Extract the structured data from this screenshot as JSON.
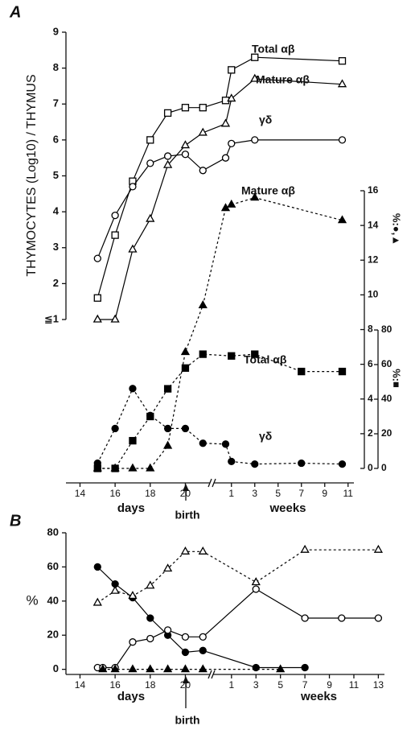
{
  "chart_data": [
    {
      "type": "line",
      "panel": "A",
      "ylabel": "THYMOCYTES (Log10) / THYMUS",
      "xlabel_days": "days",
      "xlabel_weeks": "weeks",
      "annotation": "birth",
      "xlim_days": [
        13.2,
        21.4
      ],
      "xticks_days": [
        14,
        16,
        18,
        20
      ],
      "xlim_weeks": [
        -0.5,
        11.5
      ],
      "xticks_weeks": [
        1,
        3,
        5,
        7,
        9,
        11
      ],
      "ylim": [
        1,
        9
      ],
      "yticks": [
        {
          "value": 1,
          "label": "≦1"
        },
        2,
        3,
        4,
        5,
        6,
        7,
        8,
        9
      ],
      "y2label": "%:●,▲",
      "y2lim": [
        0,
        16
      ],
      "y2ticks": [
        0,
        2,
        4,
        6,
        8,
        10,
        12,
        14,
        16
      ],
      "y3label": "%:■",
      "y3lim": [
        0,
        80
      ],
      "y3ticks": [
        0,
        20,
        40,
        60,
        80
      ],
      "series": [
        {
          "name": "Total αβ",
          "color": "#000000",
          "marker": "square",
          "filled": false,
          "dashed": false,
          "axis": "y",
          "x_days": [
            15,
            16,
            17,
            18,
            19,
            20,
            21
          ],
          "values_days": [
            1.6,
            3.35,
            4.85,
            6.0,
            6.75,
            6.9,
            6.9
          ],
          "x_weeks": [
            0.5,
            1,
            3,
            10.5
          ],
          "values_weeks": [
            7.1,
            7.95,
            8.3,
            8.2
          ]
        },
        {
          "name": "Mature αβ",
          "color": "#000000",
          "marker": "triangle",
          "filled": false,
          "dashed": false,
          "axis": "y",
          "x_days": [
            15,
            16,
            17,
            18,
            19,
            20,
            21
          ],
          "values_days": [
            1,
            1,
            2.95,
            3.8,
            5.3,
            5.85,
            6.2
          ],
          "x_weeks": [
            0.5,
            1,
            3,
            10.5
          ],
          "values_weeks": [
            6.45,
            7.15,
            7.7,
            7.55
          ]
        },
        {
          "name": "γδ",
          "color": "#000000",
          "marker": "circle",
          "filled": false,
          "dashed": false,
          "axis": "y",
          "x_days": [
            15,
            16,
            17,
            18,
            19,
            20,
            21
          ],
          "values_days": [
            2.7,
            3.9,
            4.7,
            5.35,
            5.55,
            5.6,
            5.15
          ],
          "x_weeks": [
            0.5,
            1,
            3,
            10.5
          ],
          "values_weeks": [
            5.5,
            5.9,
            6.0,
            6.0
          ]
        },
        {
          "name": "Mature αβ",
          "color": "#000000",
          "marker": "triangle",
          "filled": true,
          "dashed": true,
          "axis": "y2",
          "x_days": [
            15,
            16,
            17,
            18,
            19,
            20,
            21
          ],
          "values_days": [
            0,
            0,
            0,
            0,
            1.3,
            6.7,
            9.4
          ],
          "x_weeks": [
            0.5,
            1,
            3,
            10.5
          ],
          "values_weeks": [
            15.0,
            15.2,
            15.6,
            14.3
          ]
        },
        {
          "name": "Total αβ",
          "color": "#000000",
          "marker": "square",
          "filled": true,
          "dashed": true,
          "axis": "y3",
          "x_days": [
            15,
            16,
            17,
            18,
            19,
            20,
            21
          ],
          "values_days": [
            0,
            0,
            16,
            30,
            46,
            58,
            66
          ],
          "x_weeks": [
            1,
            3,
            7,
            10.5
          ],
          "values_weeks": [
            65,
            66,
            56,
            56
          ]
        },
        {
          "name": "γδ",
          "color": "#000000",
          "marker": "circle",
          "filled": true,
          "dashed": true,
          "axis": "y2",
          "x_days": [
            15,
            16,
            17,
            18,
            19,
            20,
            21
          ],
          "values_days": [
            0.3,
            2.3,
            4.6,
            3.05,
            2.3,
            2.3,
            1.45
          ],
          "x_weeks": [
            0.5,
            1,
            3,
            7,
            10.5
          ],
          "values_weeks": [
            1.4,
            0.4,
            0.25,
            0.3,
            0.25
          ]
        }
      ]
    },
    {
      "type": "line",
      "panel": "B",
      "ylabel": "%",
      "xlabel_days": "days",
      "xlabel_weeks": "weeks",
      "annotation": "birth",
      "xlim_days": [
        13.2,
        21.4
      ],
      "xticks_days": [
        14,
        16,
        18,
        20
      ],
      "xlim_weeks": [
        -0.5,
        13.5
      ],
      "xticks_weeks": [
        1,
        3,
        5,
        7,
        9,
        11,
        13
      ],
      "ylim": [
        -3,
        80
      ],
      "yticks": [
        0,
        20,
        40,
        60,
        80
      ],
      "series": [
        {
          "color": "#000000",
          "marker": "circle",
          "filled": true,
          "dashed": false,
          "x_days": [
            15,
            16,
            17,
            18,
            19,
            20,
            21
          ],
          "values_days": [
            60,
            50,
            42,
            30,
            20,
            10,
            11
          ],
          "x_weeks": [
            3,
            7
          ],
          "values_weeks": [
            1,
            1
          ]
        },
        {
          "color": "#000000",
          "marker": "circle",
          "filled": false,
          "dashed": false,
          "x_days": [
            15,
            15.3,
            16,
            17,
            18,
            19,
            20,
            21
          ],
          "values_days": [
            1,
            1,
            1,
            16,
            18,
            23,
            19,
            19
          ],
          "x_weeks": [
            3,
            7,
            10,
            13
          ],
          "values_weeks": [
            47,
            30,
            30,
            30
          ]
        },
        {
          "color": "#000000",
          "marker": "triangle",
          "filled": false,
          "dashed": true,
          "x_days": [
            15,
            16,
            17,
            18,
            19,
            20,
            21
          ],
          "values_days": [
            39,
            46,
            43,
            49,
            59,
            69,
            69
          ],
          "x_weeks": [
            3,
            7,
            13
          ],
          "values_weeks": [
            51,
            70,
            70
          ]
        },
        {
          "color": "#000000",
          "marker": "triangle",
          "filled": true,
          "dashed": true,
          "x_days": [
            15.3,
            16,
            17,
            18,
            19,
            20,
            21
          ],
          "values_days": [
            0,
            0,
            0,
            0,
            0,
            0,
            0
          ],
          "x_weeks": [
            5
          ],
          "values_weeks": [
            0
          ]
        }
      ]
    }
  ]
}
